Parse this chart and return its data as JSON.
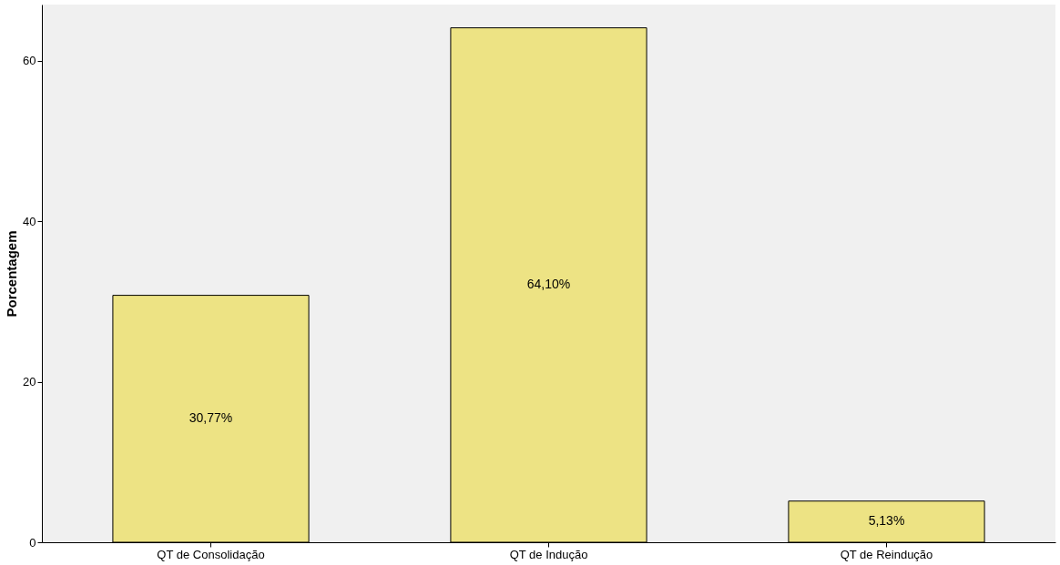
{
  "chart_data": {
    "type": "bar",
    "ylabel": "Porcentagem",
    "categories": [
      "QT de Consolidação",
      "QT de Indução",
      "QT de Reindução"
    ],
    "values": [
      30.77,
      64.1,
      5.13
    ],
    "value_labels": [
      "30,77%",
      "64,10%",
      "5,13%"
    ],
    "color": "#ede384",
    "ylim": [
      0,
      67
    ],
    "yticks": [
      0,
      20,
      40,
      60
    ],
    "grid": false
  }
}
